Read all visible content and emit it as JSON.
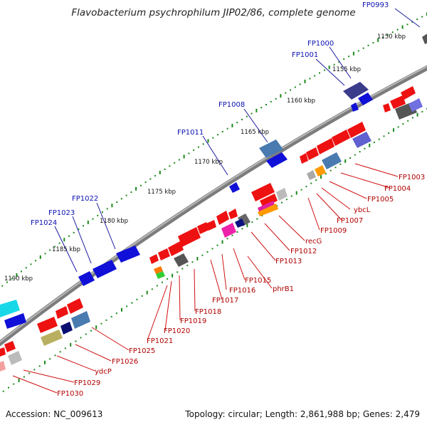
{
  "title": "Flavobacterium psychrophilum JIP02/86, complete genome",
  "footer": {
    "accession": "Accession: NC_009613",
    "summary": "Topology: circular; Length: 2,861,988 bp; Genes: 2,479"
  },
  "ticks": [
    "1150 kbp",
    "1155 kbp",
    "1160 kbp",
    "1165 kbp",
    "1170 kbp",
    "1175 kbp",
    "1180 kbp",
    "1185 kbp",
    "1190 kbp"
  ],
  "labels_top": [
    "FP0993",
    "FP1000",
    "FP1001",
    "FP1008",
    "FP1011",
    "FP1022",
    "FP1023",
    "FP1024"
  ],
  "labels_bottom": [
    "FP1003",
    "FP1004",
    "FP1005",
    "ybcL",
    "FP1007",
    "FP1009",
    "recG",
    "FP1012",
    "FP1013",
    "phrB1",
    "FP1015",
    "FP1016",
    "FP1017",
    "FP1018",
    "FP1019",
    "FP1020",
    "FP1021",
    "FP1025",
    "FP1026",
    "ydcP",
    "FP1029",
    "FP1030"
  ],
  "colors": {
    "backbone": "#8a8a8a",
    "forward_strand": "#1515e0",
    "reverse_strand": "#ee1111",
    "tick": "#1a8a1a",
    "label_top": "#0a10b0",
    "label_bottom": "#b00000"
  }
}
